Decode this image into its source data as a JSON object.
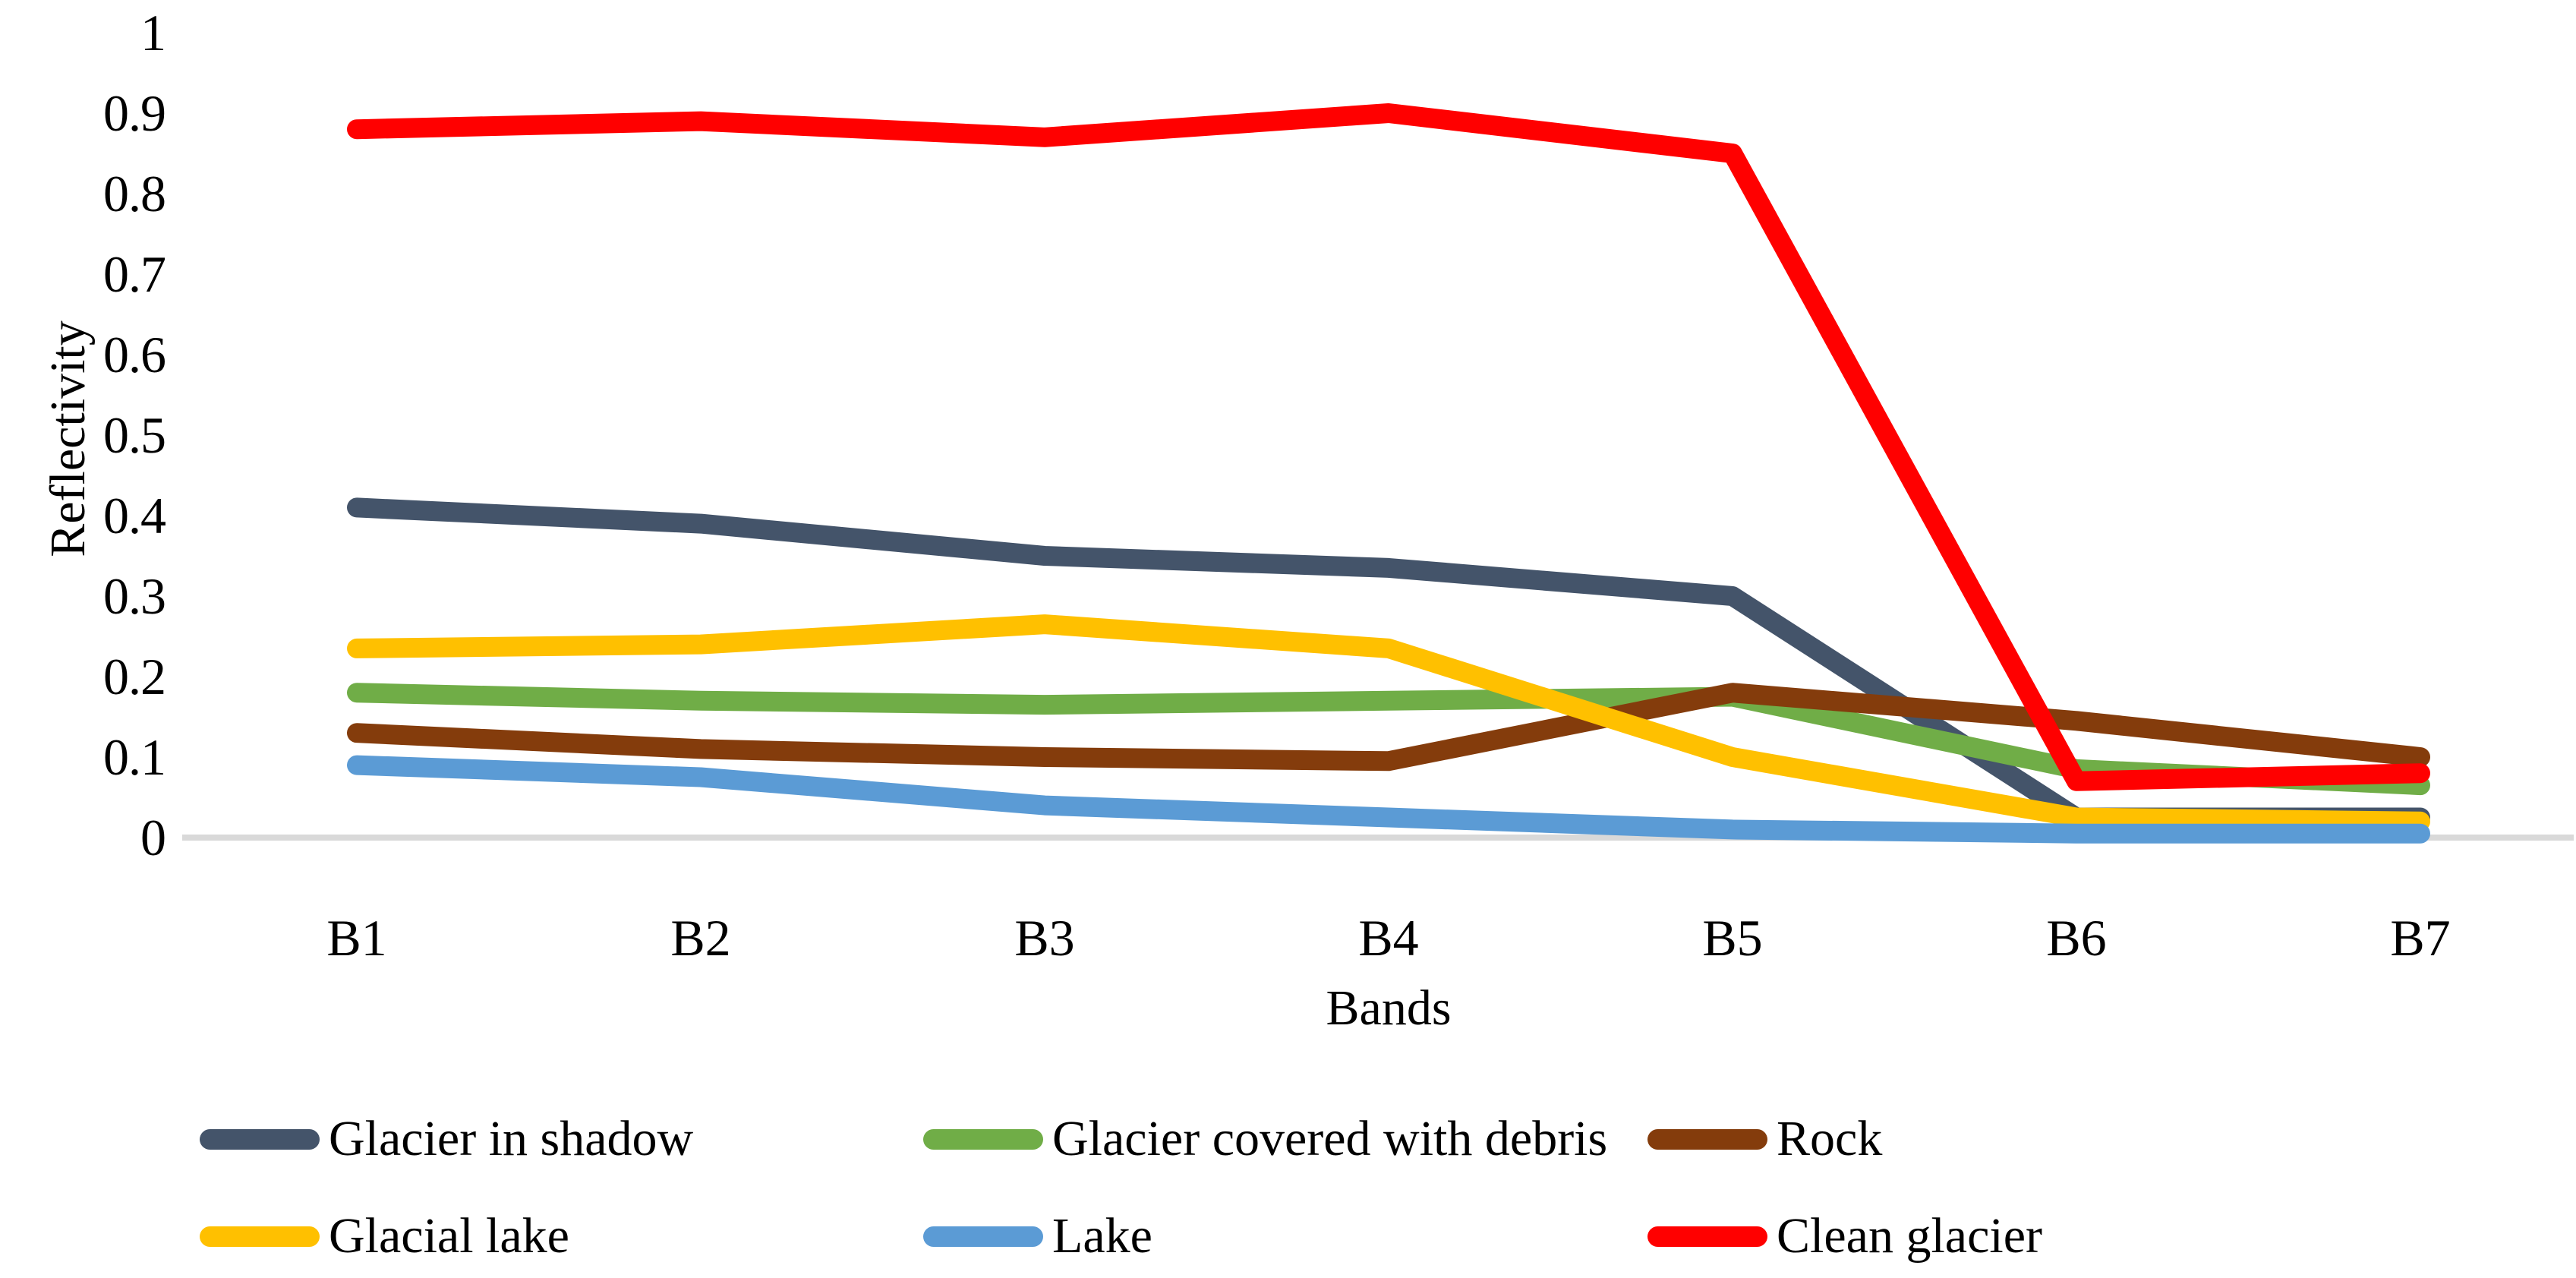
{
  "chart_data": {
    "type": "line",
    "title": "",
    "xlabel": "Bands",
    "ylabel": "Reflectivity",
    "categories": [
      "B1",
      "B2",
      "B3",
      "B4",
      "B5",
      "B6",
      "B7"
    ],
    "series": [
      {
        "name": "Glacier in shadow",
        "color": "#44546A",
        "values": [
          0.41,
          0.39,
          0.35,
          0.335,
          0.3,
          0.025,
          0.025
        ]
      },
      {
        "name": "Glacier covered with debris",
        "color": "#70AD47",
        "values": [
          0.18,
          0.17,
          0.165,
          0.17,
          0.175,
          0.085,
          0.065
        ]
      },
      {
        "name": "Rock",
        "color": "#843C0C",
        "values": [
          0.13,
          0.11,
          0.1,
          0.095,
          0.18,
          0.145,
          0.1
        ]
      },
      {
        "name": "Glacial lake",
        "color": "#FFC000",
        "values": [
          0.235,
          0.24,
          0.265,
          0.235,
          0.1,
          0.025,
          0.02
        ]
      },
      {
        "name": "Lake",
        "color": "#5B9BD5",
        "values": [
          0.09,
          0.075,
          0.04,
          0.025,
          0.01,
          0.005,
          0.005
        ]
      },
      {
        "name": "Clean glacier",
        "color": "#FF0000",
        "values": [
          0.88,
          0.89,
          0.87,
          0.9,
          0.85,
          0.07,
          0.08
        ]
      }
    ],
    "y_ticks": [
      "0",
      "0.1",
      "0.2",
      "0.3",
      "0.4",
      "0.5",
      "0.6",
      "0.7",
      "0.8",
      "0.9",
      "1"
    ],
    "ylim": [
      0,
      1
    ],
    "grid": false,
    "baseline_color": "#D9D9D9",
    "line_width": 26,
    "legend_position": "bottom",
    "legend": {
      "rows": [
        [
          "Glacier in shadow",
          "Glacier covered with debris",
          "Rock"
        ],
        [
          "Glacial lake",
          "Lake",
          "Clean glacier"
        ]
      ]
    }
  },
  "layout_text": {
    "y_axis_title": "Reflectivity",
    "x_axis_title": "Bands"
  }
}
